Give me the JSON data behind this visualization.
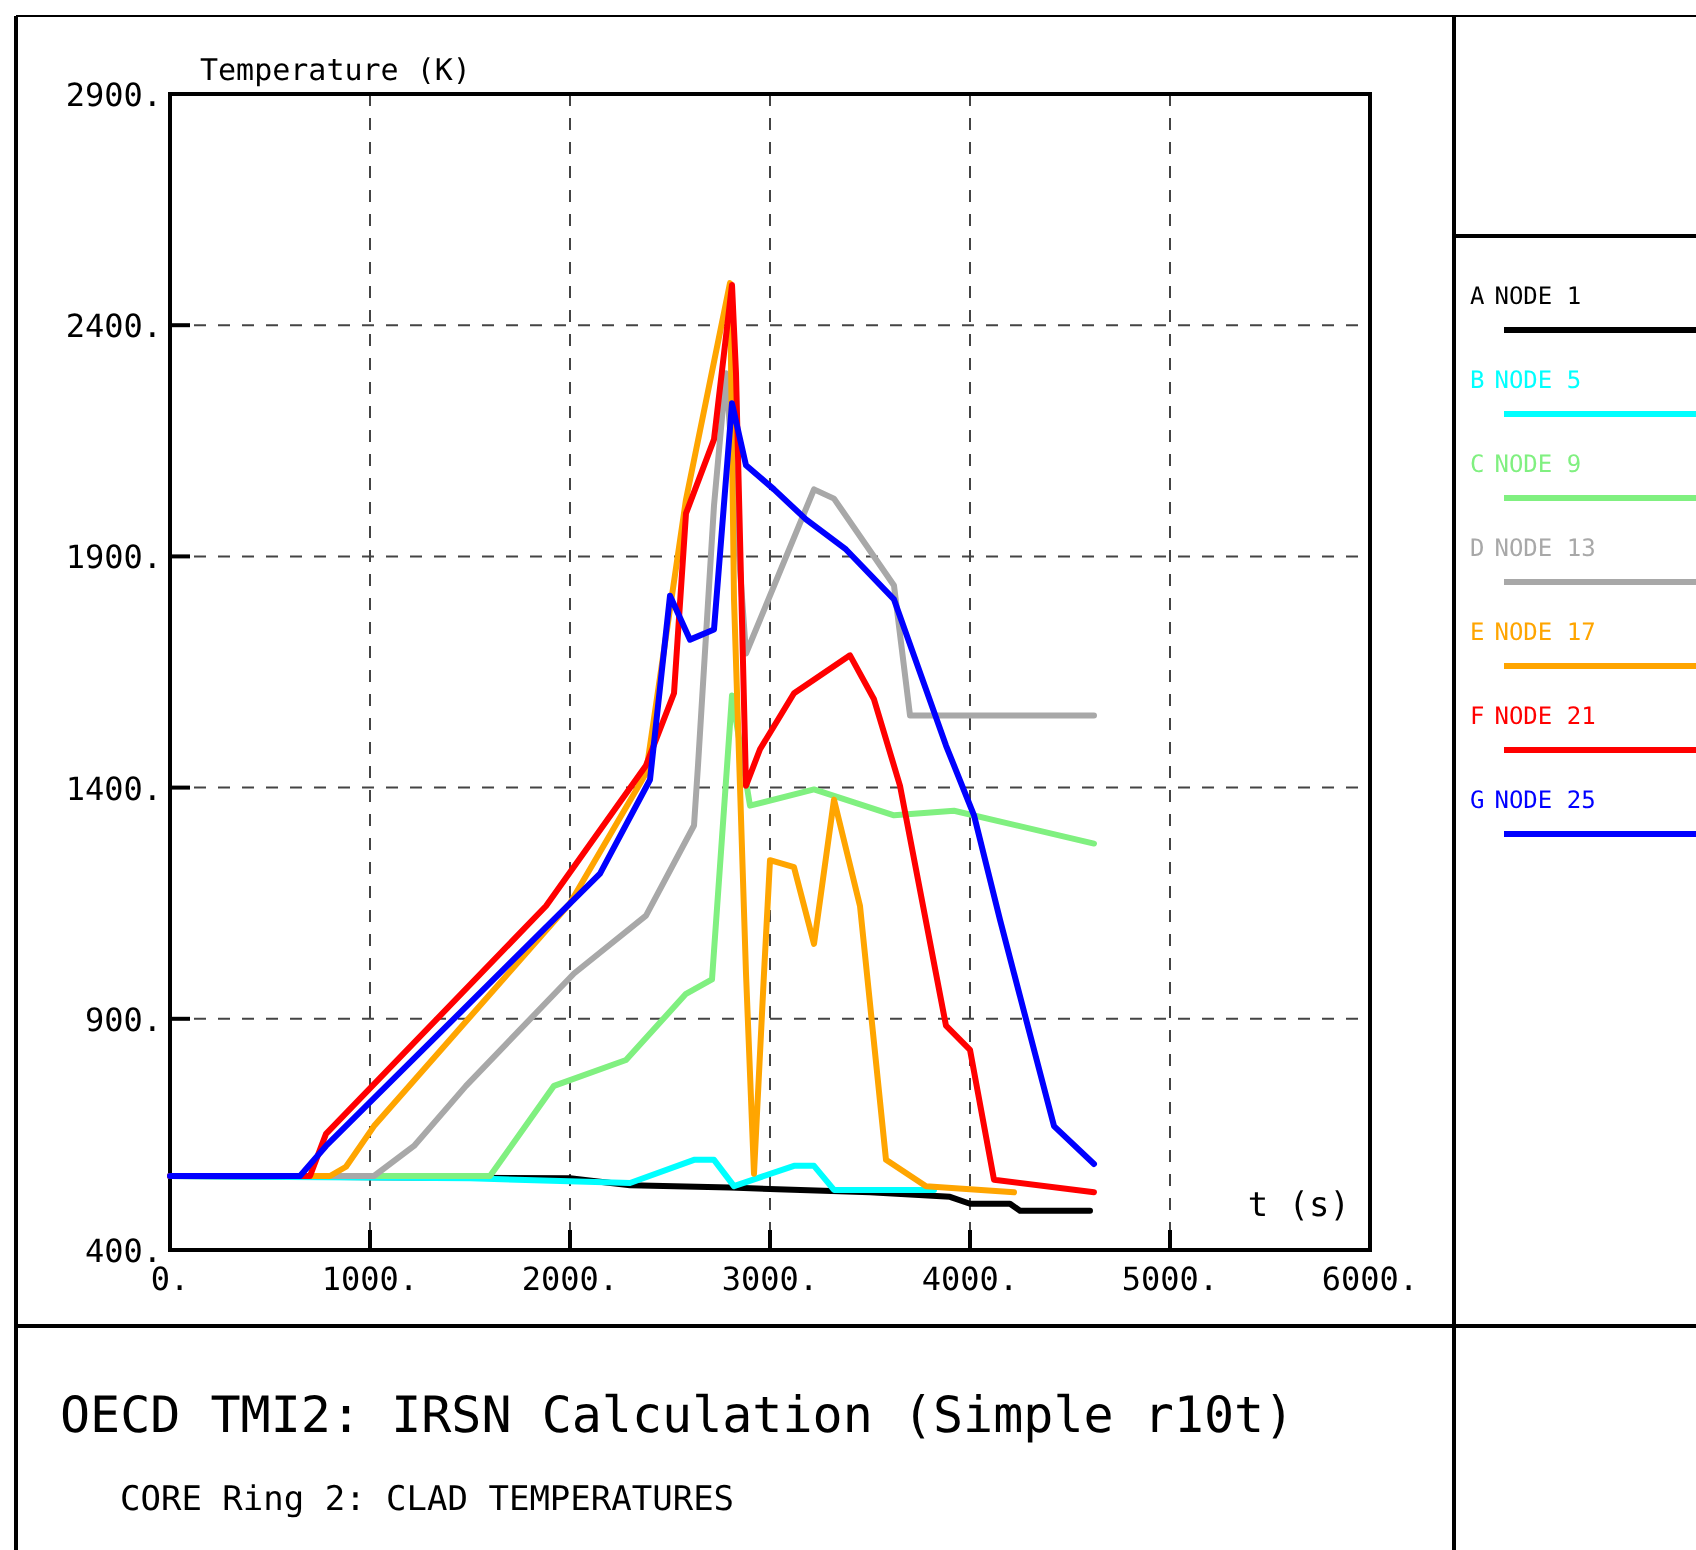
{
  "chart_data": {
    "type": "line",
    "title": "OECD TMI2: IRSN Calculation (Simple r10t)",
    "subtitle": "CORE Ring 2: CLAD TEMPERATURES",
    "xlabel": "t (s)",
    "ylabel": "Temperature (K)",
    "xlim": [
      0,
      6000
    ],
    "xticks": [
      {
        "value": 0,
        "label": "0."
      },
      {
        "value": 1000,
        "label": "1000."
      },
      {
        "value": 2000,
        "label": "2000."
      },
      {
        "value": 3000,
        "label": "3000."
      },
      {
        "value": 4000,
        "label": "4000."
      },
      {
        "value": 5000,
        "label": "5000."
      },
      {
        "value": 6000,
        "label": "6000."
      }
    ],
    "ylim": [
      400,
      2900
    ],
    "yticks": [
      {
        "value": 400,
        "label": "400."
      },
      {
        "value": 900,
        "label": "900."
      },
      {
        "value": 1400,
        "label": "1400."
      },
      {
        "value": 1900,
        "label": "1900."
      },
      {
        "value": 2400,
        "label": "2400."
      },
      {
        "value": 2900,
        "label": "2900."
      }
    ],
    "grid": true,
    "legend": "right",
    "line_style": "solid",
    "series": [
      {
        "name": "A NODE 1",
        "color": "#000000",
        "x": [
          0,
          2000,
          2300,
          2800,
          3500,
          3900,
          4000,
          4200,
          4250,
          4600
        ],
        "values": [
          560,
          555,
          540,
          535,
          525,
          515,
          500,
          500,
          485,
          485
        ]
      },
      {
        "name": "B NODE 5",
        "color": "#00ffff",
        "x": [
          0,
          1500,
          2300,
          2620,
          2720,
          2820,
          3120,
          3220,
          3320,
          3820
        ],
        "values": [
          560,
          555,
          545,
          595,
          595,
          538,
          582,
          582,
          530,
          530
        ]
      },
      {
        "name": "C NODE 9",
        "color": "#80f080",
        "x": [
          0,
          1600,
          1920,
          2280,
          2580,
          2710,
          2810,
          2900,
          3220,
          3620,
          3920,
          4620
        ],
        "values": [
          560,
          560,
          755,
          811,
          954,
          985,
          1599,
          1361,
          1396,
          1340,
          1350,
          1279
        ]
      },
      {
        "name": "D NODE 13",
        "color": "#a8a8a8",
        "x": [
          0,
          1020,
          1220,
          1480,
          2020,
          2380,
          2620,
          2640,
          2720,
          2780,
          2880,
          3220,
          3320,
          3620,
          3700,
          4620
        ],
        "values": [
          560,
          560,
          625,
          755,
          998,
          1123,
          1318,
          1448,
          2010,
          2296,
          1690,
          2045,
          2025,
          1837,
          1556,
          1556
        ]
      },
      {
        "name": "E NODE 17",
        "color": "#ffa500",
        "x": [
          0,
          800,
          880,
          1020,
          2000,
          2380,
          2580,
          2800,
          2820,
          2880,
          2920,
          2970,
          3000,
          3120,
          3220,
          3320,
          3450,
          3580,
          3780,
          4220
        ],
        "values": [
          560,
          560,
          580,
          668,
          1150,
          1431,
          2023,
          2491,
          1807,
          998,
          565,
          998,
          1243,
          1228,
          1062,
          1374,
          1144,
          595,
          538,
          525
        ]
      },
      {
        "name": "F NODE 21",
        "color": "#ff0000",
        "x": [
          0,
          700,
          780,
          1880,
          2380,
          2520,
          2580,
          2720,
          2810,
          2830,
          2880,
          2950,
          3120,
          3400,
          3520,
          3650,
          3880,
          4000,
          4120,
          4620
        ],
        "values": [
          560,
          560,
          651,
          1144,
          1448,
          1604,
          1993,
          2153,
          2487,
          2296,
          1404,
          1483,
          1604,
          1686,
          1591,
          1404,
          885,
          833,
          552,
          525
        ]
      },
      {
        "name": "G NODE 25",
        "color": "#0000ff",
        "x": [
          0,
          650,
          780,
          2150,
          2400,
          2500,
          2600,
          2720,
          2810,
          2880,
          3020,
          3180,
          3380,
          3620,
          3880,
          4020,
          4150,
          4420,
          4620
        ],
        "values": [
          560,
          560,
          625,
          1214,
          1417,
          1815,
          1720,
          1742,
          2231,
          2097,
          2045,
          1980,
          1915,
          1807,
          1491,
          1340,
          1114,
          668,
          586
        ]
      }
    ]
  }
}
